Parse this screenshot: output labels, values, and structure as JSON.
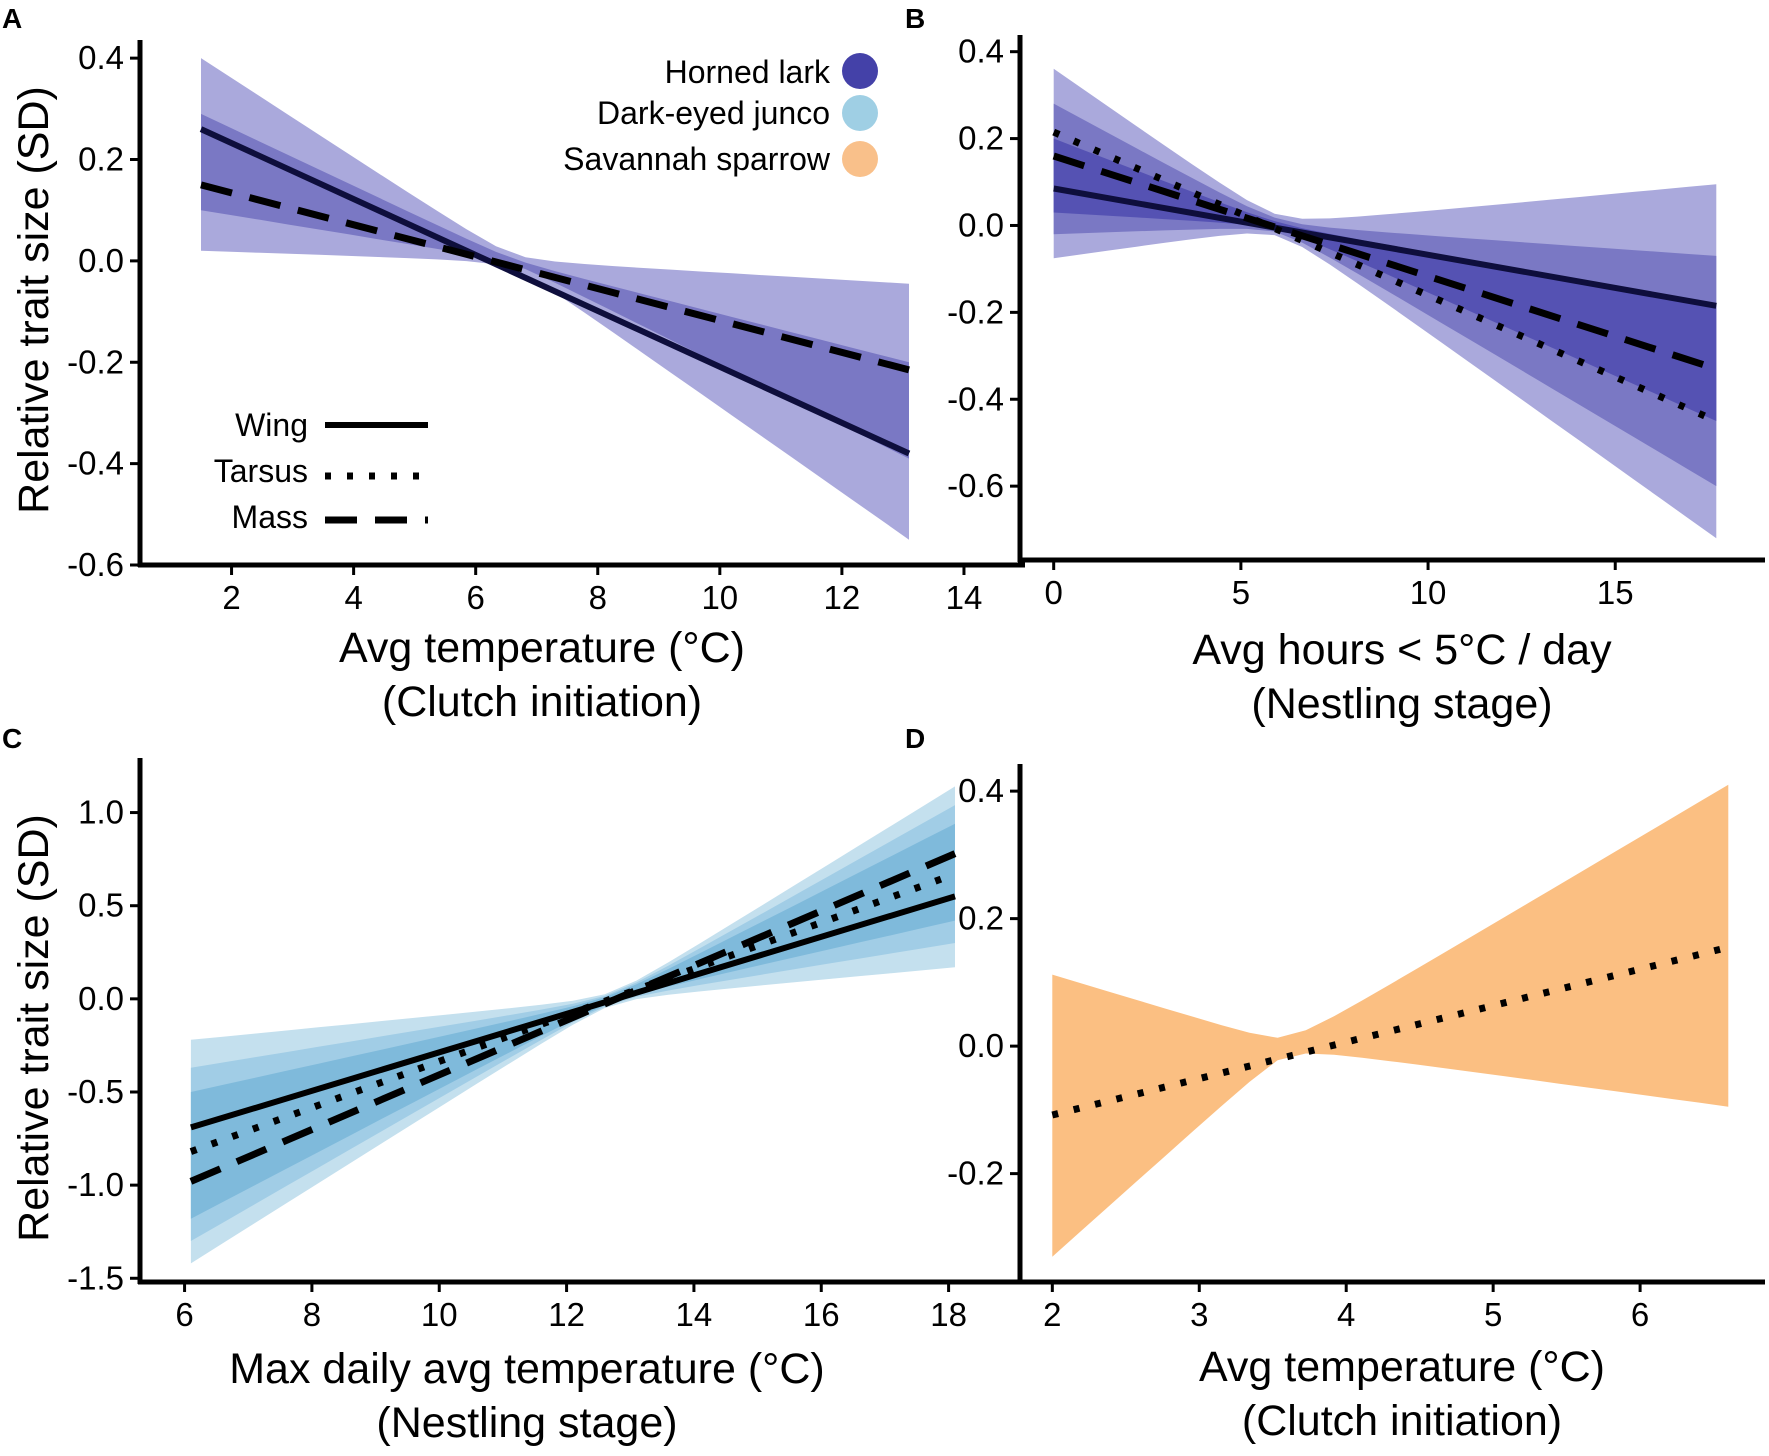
{
  "colors": {
    "lark_light": "#aaa9dc",
    "lark_mid": "#7a78c4",
    "lark_dark": "#5552b3",
    "junco_light": "#c4e0ee",
    "junco_mid": "#a1cde6",
    "junco_dark": "#7fbadb",
    "sparrow": "#fbbf82",
    "lark_swatch": "#4441a8",
    "junco_swatch": "#9fcfe4",
    "sparrow_swatch": "#f9c08a",
    "line": "#000000",
    "wing_line_lark": "#0e0e3c"
  },
  "legend": {
    "species": [
      {
        "label": "Horned lark",
        "color_key": "lark_swatch"
      },
      {
        "label": "Dark-eyed junco",
        "color_key": "junco_swatch"
      },
      {
        "label": "Savannah sparrow",
        "color_key": "sparrow_swatch"
      }
    ],
    "traits": [
      {
        "label": "Wing",
        "style": "solid"
      },
      {
        "label": "Tarsus",
        "style": "dotted"
      },
      {
        "label": "Mass",
        "style": "dashed"
      }
    ]
  },
  "chart_data": [
    {
      "type": "line",
      "panel": "A",
      "xlabel": [
        "Avg temperature (°C)",
        "(Clutch initiation)"
      ],
      "ylabel": "Relative trait size (SD)",
      "xlim": [
        0.5,
        15
      ],
      "ylim": [
        -0.6,
        0.42
      ],
      "xticks": [
        2,
        4,
        6,
        8,
        10,
        12,
        14
      ],
      "yticks": [
        -0.6,
        -0.4,
        -0.2,
        0.0,
        0.2,
        0.4
      ],
      "ytick_labels": [
        "-0.6",
        "-0.4",
        "-0.2",
        "0.0",
        "0.2",
        "0.4"
      ],
      "bands": [
        {
          "x": [
            1.5,
            13.1
          ],
          "lower": [
            0.02,
            -0.55
          ],
          "upper": [
            0.4,
            -0.045
          ],
          "center": [
            6.6,
            0.0
          ],
          "color_key": "lark_light"
        },
        {
          "x": [
            1.5,
            13.1
          ],
          "lower": [
            0.1,
            -0.39
          ],
          "upper": [
            0.29,
            -0.2
          ],
          "center": [
            6.6,
            0.0
          ],
          "color_key": "lark_mid"
        }
      ],
      "series": [
        {
          "name": "Wing",
          "style": "solid",
          "color_key": "wing_line_lark",
          "x": [
            1.5,
            13.1
          ],
          "y": [
            0.26,
            -0.38
          ]
        },
        {
          "name": "Mass",
          "style": "dashed",
          "color_key": "line",
          "x": [
            1.5,
            13.1
          ],
          "y": [
            0.15,
            -0.215
          ]
        }
      ]
    },
    {
      "type": "line",
      "panel": "B",
      "xlabel": [
        "Avg hours < 5°C / day",
        "(Nestling stage)"
      ],
      "ylabel": "",
      "xlim": [
        -0.9,
        19
      ],
      "ylim": [
        -0.77,
        0.42
      ],
      "xticks": [
        0,
        5,
        10,
        15
      ],
      "yticks": [
        -0.6,
        -0.4,
        -0.2,
        0.0,
        0.2,
        0.4
      ],
      "ytick_labels": [
        "-0.6",
        "-0.4",
        "-0.2",
        "0.0",
        "0.2",
        "0.4"
      ],
      "bands": [
        {
          "x": [
            0,
            17.7
          ],
          "lower": [
            -0.075,
            -0.72
          ],
          "upper": [
            0.36,
            0.095
          ],
          "center": [
            6.0,
            0.0
          ],
          "color_key": "lark_light"
        },
        {
          "x": [
            0,
            17.7
          ],
          "lower": [
            -0.02,
            -0.6
          ],
          "upper": [
            0.28,
            -0.07
          ],
          "center": [
            6.0,
            0.0
          ],
          "color_key": "lark_mid"
        },
        {
          "x": [
            0,
            17.7
          ],
          "lower": [
            0.03,
            -0.45
          ],
          "upper": [
            0.2,
            -0.18
          ],
          "center": [
            6.0,
            0.0
          ],
          "color_key": "lark_dark"
        }
      ],
      "series": [
        {
          "name": "Wing",
          "style": "solid",
          "color_key": "wing_line_lark",
          "x": [
            0,
            17.7
          ],
          "y": [
            0.085,
            -0.185
          ]
        },
        {
          "name": "Tarsus",
          "style": "dotted",
          "color_key": "line",
          "x": [
            0,
            17.7
          ],
          "y": [
            0.215,
            -0.45
          ]
        },
        {
          "name": "Mass",
          "style": "dashed",
          "color_key": "line",
          "x": [
            0,
            17.7
          ],
          "y": [
            0.16,
            -0.33
          ]
        }
      ]
    },
    {
      "type": "line",
      "panel": "C",
      "xlabel": [
        "Max daily avg temperature (°C)",
        "(Nestling stage)"
      ],
      "ylabel": "Relative trait size (SD)",
      "xlim": [
        5.3,
        19.2
      ],
      "ylim": [
        -1.52,
        1.25
      ],
      "xticks": [
        6,
        8,
        10,
        12,
        14,
        16,
        18
      ],
      "yticks": [
        -1.5,
        -1.0,
        -0.5,
        0.0,
        0.5,
        1.0
      ],
      "ytick_labels": [
        "-1.5",
        "-1.0",
        "-0.5",
        "0.0",
        "0.5",
        "1.0"
      ],
      "bands": [
        {
          "x": [
            6.1,
            18.1
          ],
          "lower": [
            -1.42,
            0.17
          ],
          "upper": [
            -0.22,
            1.14
          ],
          "center": [
            12.7,
            0.0
          ],
          "color_key": "junco_light"
        },
        {
          "x": [
            6.1,
            18.1
          ],
          "lower": [
            -1.3,
            0.3
          ],
          "upper": [
            -0.37,
            1.04
          ],
          "center": [
            12.7,
            0.0
          ],
          "color_key": "junco_mid"
        },
        {
          "x": [
            6.1,
            18.1
          ],
          "lower": [
            -1.18,
            0.42
          ],
          "upper": [
            -0.5,
            0.94
          ],
          "center": [
            12.7,
            0.0
          ],
          "color_key": "junco_dark"
        }
      ],
      "series": [
        {
          "name": "Wing",
          "style": "solid",
          "color_key": "line",
          "x": [
            6.1,
            18.1
          ],
          "y": [
            -0.69,
            0.55
          ]
        },
        {
          "name": "Tarsus",
          "style": "dotted",
          "color_key": "line",
          "x": [
            6.1,
            18.1
          ],
          "y": [
            -0.82,
            0.67
          ]
        },
        {
          "name": "Mass",
          "style": "dashed",
          "color_key": "line",
          "x": [
            6.1,
            18.1
          ],
          "y": [
            -0.98,
            0.78
          ]
        }
      ]
    },
    {
      "type": "line",
      "panel": "D",
      "xlabel": [
        "Avg temperature (°C)",
        "(Clutch initiation)"
      ],
      "ylabel": "",
      "xlim": [
        1.78,
        6.85
      ],
      "ylim": [
        -0.37,
        0.43
      ],
      "xticks": [
        2,
        3,
        4,
        5,
        6
      ],
      "yticks": [
        -0.2,
        0.0,
        0.2,
        0.4
      ],
      "ytick_labels": [
        "-0.2",
        "0.0",
        "0.2",
        "0.4"
      ],
      "bands": [
        {
          "x": [
            2.0,
            6.6
          ],
          "lower": [
            -0.33,
            -0.095
          ],
          "upper": [
            0.112,
            0.41
          ],
          "center": [
            3.6,
            0.0
          ],
          "color_key": "sparrow"
        }
      ],
      "series": [
        {
          "name": "Tarsus",
          "style": "dotted",
          "color_key": "line",
          "x": [
            2.0,
            6.6
          ],
          "y": [
            -0.108,
            0.155
          ]
        }
      ]
    }
  ]
}
